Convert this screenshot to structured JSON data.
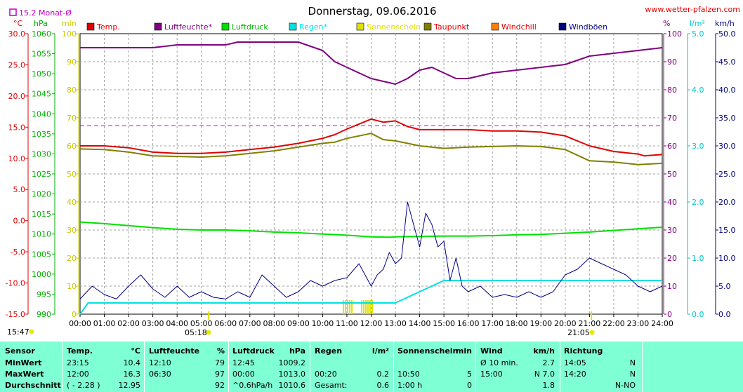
{
  "title": "Donnerstag, 09.06.2016",
  "website": "www.wetter-pfalzen.com",
  "month_avg_label": "15.2 Monat-Ø",
  "colors": {
    "temp": "#e00000",
    "humidity": "#800080",
    "pressure": "#00e000",
    "rain": "#00e0e0",
    "sun": "#e0e000",
    "dew": "#808000",
    "windchill": "#ff8000",
    "gust": "#000080"
  },
  "units": {
    "left1": "°C",
    "left2": "hPa",
    "left3": "min",
    "right1": "%",
    "right2": "l/m²",
    "right3": "km/h"
  },
  "sunrise_label": "05:18",
  "sunset_label": "21:05",
  "left_time": "15:47",
  "chart_data": {
    "type": "line",
    "title": "Donnerstag, 09.06.2016",
    "x_ticks": [
      "00:00",
      "01:00",
      "02:00",
      "03:00",
      "04:00",
      "05:00",
      "06:00",
      "07:00",
      "08:00",
      "09:00",
      "10:00",
      "11:00",
      "12:00",
      "13:00",
      "14:00",
      "15:00",
      "16:00",
      "17:00",
      "18:00",
      "19:00",
      "20:00",
      "21:00",
      "22:00",
      "23:00",
      "24:00"
    ],
    "axes": {
      "temp": {
        "ticks": [
          "30.0",
          "25.0",
          "20.0",
          "15.0",
          "10.0",
          "5.0",
          "0.0",
          "-5.0",
          "-10.0",
          "-15.0"
        ],
        "ylim": [
          -15,
          30
        ]
      },
      "pressure": {
        "ticks": [
          "1060",
          "1055",
          "1050",
          "1045",
          "1040",
          "1035",
          "1030",
          "1025",
          "1020",
          "1015",
          "1010",
          "1005",
          "1000",
          "995",
          "990"
        ],
        "ylim": [
          990,
          1060
        ]
      },
      "minutes": {
        "ticks": [
          "100",
          "90",
          "80",
          "70",
          "60",
          "50",
          "40",
          "30",
          "20",
          "10",
          "0"
        ],
        "ylim": [
          0,
          100
        ]
      },
      "humidity": {
        "ticks": [
          "100",
          "90",
          "80",
          "70",
          "60",
          "50",
          "40",
          "30",
          "20",
          "10",
          "0"
        ],
        "ylim": [
          0,
          100
        ]
      },
      "rain": {
        "ticks": [
          "5.0",
          "4.0",
          "3.0",
          "2.0",
          "1.0",
          "0.0"
        ],
        "ylim": [
          0,
          5
        ]
      },
      "wind": {
        "ticks": [
          "50.0",
          "45.0",
          "40.0",
          "35.0",
          "30.0",
          "25.0",
          "20.0",
          "15.0",
          "10.0",
          "5.0",
          "0.0"
        ],
        "ylim": [
          0,
          50
        ]
      }
    },
    "legend": [
      "Temp.",
      "Luftfeuchte*",
      "Luftdruck",
      "Regen*",
      "Sonnenschein",
      "Taupunkt",
      "Windchill",
      "Windböen"
    ],
    "month_avg_temp": 15.2,
    "series": [
      {
        "name": "Temp.",
        "axis": "temp",
        "x": [
          0,
          1,
          2,
          3,
          4,
          5,
          6,
          7,
          8,
          9,
          10,
          10.5,
          11,
          11.5,
          12,
          12.5,
          13,
          13.5,
          14,
          15,
          16,
          17,
          18,
          19,
          20,
          21,
          22,
          23,
          23.25,
          24
        ],
        "y": [
          12.0,
          12.0,
          11.7,
          11.0,
          10.8,
          10.8,
          11.0,
          11.4,
          11.8,
          12.4,
          13.2,
          13.8,
          14.7,
          15.5,
          16.3,
          15.8,
          16.0,
          15.1,
          14.6,
          14.6,
          14.6,
          14.4,
          14.4,
          14.2,
          13.6,
          12.0,
          11.1,
          10.7,
          10.4,
          10.6
        ]
      },
      {
        "name": "Luftfeuchte*",
        "axis": "humidity",
        "x": [
          0,
          1,
          2,
          3,
          4,
          5,
          6,
          6.5,
          7,
          8,
          9,
          10,
          10.5,
          11,
          11.5,
          12,
          12.5,
          13,
          13.5,
          14,
          14.5,
          15,
          15.5,
          16,
          16.5,
          17,
          18,
          19,
          20,
          21,
          22,
          23,
          24
        ],
        "y": [
          95,
          95,
          95,
          95,
          96,
          96,
          96,
          97,
          97,
          97,
          97,
          94,
          90,
          88,
          86,
          84,
          83,
          82,
          84,
          87,
          88,
          86,
          84,
          84,
          85,
          86,
          87,
          88,
          89,
          92,
          93,
          94,
          95
        ]
      },
      {
        "name": "Luftdruck",
        "axis": "pressure",
        "x": [
          0,
          1,
          2,
          3,
          4,
          5,
          6,
          7,
          8,
          9,
          10,
          11,
          12,
          12.75,
          13,
          14,
          15,
          16,
          17,
          18,
          19,
          20,
          21,
          22,
          23,
          24
        ],
        "y": [
          1013.0,
          1012.6,
          1012.1,
          1011.6,
          1011.2,
          1011.0,
          1011.0,
          1010.8,
          1010.5,
          1010.3,
          1010.0,
          1009.7,
          1009.3,
          1009.2,
          1009.3,
          1009.4,
          1009.5,
          1009.5,
          1009.6,
          1009.8,
          1009.9,
          1010.2,
          1010.5,
          1010.9,
          1011.3,
          1011.7
        ]
      },
      {
        "name": "Regen*",
        "axis": "rain",
        "x": [
          0,
          0.33,
          1,
          2,
          3,
          4,
          5,
          6,
          7,
          8,
          9,
          10,
          11,
          12,
          13,
          13.5,
          14,
          14.5,
          15,
          15.5,
          16,
          17,
          18,
          19,
          20,
          21,
          22,
          23,
          24
        ],
        "y": [
          0,
          0.2,
          0.2,
          0.2,
          0.2,
          0.2,
          0.2,
          0.2,
          0.2,
          0.2,
          0.2,
          0.2,
          0.2,
          0.2,
          0.2,
          0.3,
          0.4,
          0.5,
          0.6,
          0.6,
          0.6,
          0.6,
          0.6,
          0.6,
          0.6,
          0.6,
          0.6,
          0.6,
          0.6
        ]
      },
      {
        "name": "Taupunkt",
        "axis": "temp",
        "x": [
          0,
          1,
          2,
          3,
          4,
          5,
          6,
          7,
          8,
          9,
          10,
          10.5,
          11,
          11.5,
          12,
          12.5,
          13,
          13.5,
          14,
          15,
          16,
          17,
          18,
          19,
          20,
          21,
          22,
          23,
          24
        ],
        "y": [
          11.5,
          11.4,
          11.0,
          10.4,
          10.3,
          10.2,
          10.4,
          10.8,
          11.2,
          11.8,
          12.4,
          12.6,
          13.2,
          13.6,
          14.0,
          13.0,
          12.8,
          12.4,
          12.0,
          11.6,
          11.8,
          11.9,
          12.0,
          11.9,
          11.4,
          9.6,
          9.4,
          9.0,
          9.2
        ]
      },
      {
        "name": "Windböen",
        "axis": "wind",
        "x": [
          0,
          0.5,
          1,
          1.5,
          2,
          2.5,
          3,
          3.5,
          4,
          4.5,
          5,
          5.5,
          6,
          6.5,
          7,
          7.5,
          8,
          8.5,
          9,
          9.5,
          10,
          10.5,
          11,
          11.5,
          12,
          12.25,
          12.5,
          12.75,
          13,
          13.25,
          13.5,
          13.75,
          14,
          14.25,
          14.5,
          14.75,
          15,
          15.25,
          15.5,
          15.75,
          16,
          16.5,
          17,
          17.5,
          18,
          18.5,
          19,
          19.5,
          20,
          20.5,
          21,
          21.5,
          22,
          22.5,
          23,
          23.5,
          24
        ],
        "y": [
          2.7,
          5.0,
          3.5,
          2.7,
          5.0,
          7.0,
          4.5,
          3.0,
          5.0,
          3.0,
          4.0,
          3.0,
          2.7,
          4.0,
          3.0,
          7.0,
          5.0,
          3.0,
          4.0,
          6.0,
          5.0,
          6.0,
          6.5,
          9.0,
          5.0,
          7.0,
          8.0,
          11.0,
          9.0,
          10.0,
          20.0,
          16.0,
          12.0,
          18.0,
          16.0,
          12.0,
          13.0,
          6.0,
          10.0,
          5.0,
          4.0,
          5.0,
          3.0,
          3.5,
          3.0,
          4.0,
          3.0,
          4.0,
          7.0,
          8.0,
          10.0,
          9.0,
          8.0,
          7.0,
          5.0,
          4.0,
          5.0
        ]
      }
    ],
    "sunshine_bars": {
      "x_start": [
        10.83,
        11.58
      ],
      "x_end": [
        11.25,
        12.08
      ],
      "height_min": 5
    }
  },
  "summary": {
    "headers": {
      "sensor": "Sensor",
      "temp": "Temp.",
      "temp_u": "°C",
      "hum": "Luftfeuchte",
      "hum_u": "%",
      "press": "Luftdruck",
      "press_u": "hPa",
      "rain": "Regen",
      "rain_u": "l/m²",
      "sun": "Sonnenschein",
      "sun_u": "min",
      "wind": "Wind",
      "wind_u": "km/h",
      "dir": "Richtung"
    },
    "rows": [
      {
        "label": "MinWert",
        "temp_t": "23:15",
        "temp_v": "10.4",
        "hum_t": "12:10",
        "hum_v": "79",
        "press_t": "12:45",
        "press_v": "1009.2",
        "rain_t": "",
        "rain_v": "",
        "sun_t": "",
        "sun_v": "",
        "wind_t": "Ø 10 min.",
        "wind_v": "2.7",
        "dir_t": "14:05",
        "dir_v": "N"
      },
      {
        "label": "MaxWert",
        "temp_t": "12:00",
        "temp_v": "16.3",
        "hum_t": "06:30",
        "hum_v": "97",
        "press_t": "00:00",
        "press_v": "1013.0",
        "rain_t": "00:20",
        "rain_v": "0.2",
        "sun_t": "10:50",
        "sun_v": "5",
        "wind_t": "15:00",
        "wind_v": "N 7.0",
        "dir_t": "14:20",
        "dir_v": "N"
      },
      {
        "label": "Durchschnitt",
        "temp_t": "( - 2.28 )",
        "temp_v": "12.95",
        "hum_t": "",
        "hum_v": "92",
        "press_t": "^0.6hPa/h",
        "press_v": "1010.6",
        "rain_t": "Gesamt:",
        "rain_v": "0.6",
        "sun_t": "1:00 h",
        "sun_v": "0",
        "wind_t": "",
        "wind_v": "1.8",
        "dir_t": "",
        "dir_v": "N-NO"
      }
    ]
  }
}
